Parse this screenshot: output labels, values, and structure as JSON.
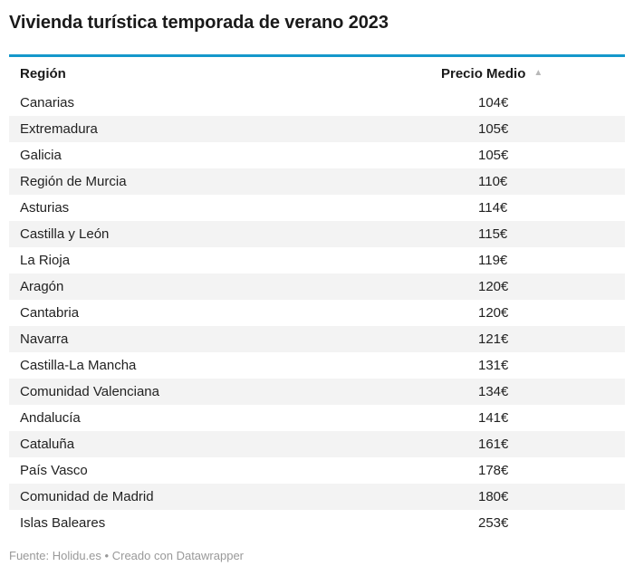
{
  "chart_data": {
    "type": "table",
    "title": "Vivienda turística temporada de verano 2023",
    "columns": [
      "Región",
      "Precio Medio"
    ],
    "unit": "€",
    "sort": {
      "column": "Precio Medio",
      "direction": "ascending",
      "indicator": "▲"
    },
    "rows": [
      [
        "Canarias",
        "104€"
      ],
      [
        "Extremadura",
        "105€"
      ],
      [
        "Galicia",
        "105€"
      ],
      [
        "Región de Murcia",
        "110€"
      ],
      [
        "Asturias",
        "114€"
      ],
      [
        "Castilla y León",
        "115€"
      ],
      [
        "La Rioja",
        "119€"
      ],
      [
        "Aragón",
        "120€"
      ],
      [
        "Cantabria",
        "120€"
      ],
      [
        "Navarra",
        "121€"
      ],
      [
        "Castilla-La Mancha",
        "131€"
      ],
      [
        "Comunidad Valenciana",
        "134€"
      ],
      [
        "Andalucía",
        "141€"
      ],
      [
        "Cataluña",
        "161€"
      ],
      [
        "País Vasco",
        "178€"
      ],
      [
        "Comunidad de Madrid",
        "180€"
      ],
      [
        "Islas Baleares",
        "253€"
      ]
    ],
    "values_numeric": [
      104,
      105,
      105,
      110,
      114,
      115,
      119,
      120,
      120,
      121,
      131,
      134,
      141,
      161,
      178,
      180,
      253
    ]
  },
  "footer": {
    "source_prefix": "Fuente:",
    "source_link": "Holidu.es",
    "separator": "•",
    "credit_prefix": "Creado con",
    "credit_link": "Datawrapper"
  },
  "colors": {
    "accent_rule": "#1598cb",
    "row_stripe": "#f3f3f3",
    "muted_text": "#999999",
    "sort_arrow": "#b8b8b8"
  },
  "icons": {
    "sort_ascending": "▲"
  }
}
